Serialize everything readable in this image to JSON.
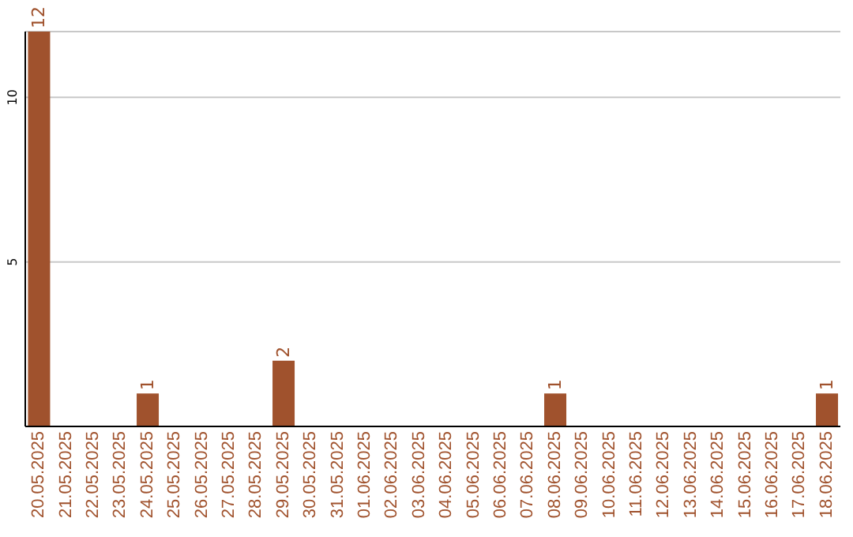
{
  "chart_data": {
    "type": "bar",
    "categories": [
      "20.05.2025",
      "21.05.2025",
      "22.05.2025",
      "23.05.2025",
      "24.05.2025",
      "25.05.2025",
      "26.05.2025",
      "27.05.2025",
      "28.05.2025",
      "29.05.2025",
      "30.05.2025",
      "31.05.2025",
      "01.06.2025",
      "02.06.2025",
      "03.06.2025",
      "04.06.2025",
      "05.06.2025",
      "06.06.2025",
      "07.06.2025",
      "08.06.2025",
      "09.06.2025",
      "10.06.2025",
      "11.06.2025",
      "12.06.2025",
      "13.06.2025",
      "14.06.2025",
      "15.06.2025",
      "16.06.2025",
      "17.06.2025",
      "18.06.2025"
    ],
    "values": [
      12,
      0,
      0,
      0,
      1,
      0,
      0,
      0,
      0,
      2,
      0,
      0,
      0,
      0,
      0,
      0,
      0,
      0,
      0,
      1,
      0,
      0,
      0,
      0,
      0,
      0,
      0,
      0,
      0,
      1
    ],
    "value_labels": [
      "12",
      null,
      null,
      null,
      "1",
      null,
      null,
      null,
      null,
      "2",
      null,
      null,
      null,
      null,
      null,
      null,
      null,
      null,
      null,
      "1",
      null,
      null,
      null,
      null,
      null,
      null,
      null,
      null,
      null,
      "1"
    ],
    "color": "#a0522d",
    "ylim": [
      0,
      12
    ],
    "yticks": [
      5,
      10
    ],
    "grid": "y"
  }
}
